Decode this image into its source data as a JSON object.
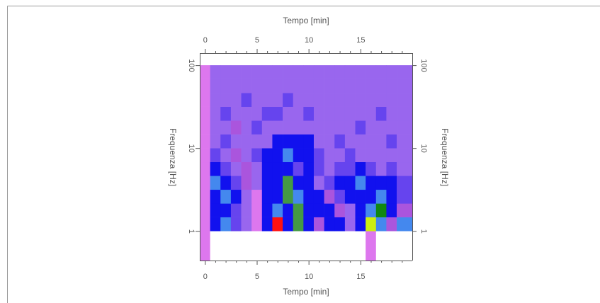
{
  "chart_data": {
    "type": "heatmap",
    "title_top": "Tempo [min]",
    "title_bottom": "Tempo [min]",
    "ylabel_left": "Frequenza [Hz]",
    "ylabel_right": "Frequenza [Hz]",
    "xlim": [
      -0.5,
      20
    ],
    "ylim": [
      0.44,
      140
    ],
    "log_y": true,
    "xticks": [
      0,
      5,
      10,
      15
    ],
    "xticks_minor": [
      1,
      2,
      3,
      4,
      6,
      7,
      8,
      9,
      11,
      12,
      13,
      14,
      16,
      17,
      18,
      19
    ],
    "yticks": [
      1,
      10,
      100
    ],
    "x_edges": [
      -0.5,
      0.5,
      1.5,
      2.5,
      3.5,
      4.5,
      5.5,
      6.5,
      7.5,
      8.5,
      9.5,
      10.5,
      11.5,
      12.5,
      13.5,
      14.5,
      15.5,
      16.5,
      17.5,
      18.5,
      20
    ],
    "y_edges": [
      0.44,
      1,
      1.47,
      2.15,
      3.16,
      4.64,
      6.81,
      10,
      14.7,
      21.5,
      31.6,
      46.4,
      68.1,
      100
    ],
    "cell_colors": [
      [
        "#dd77ee",
        "#ffffff",
        "#ffffff",
        "#ffffff",
        "#ffffff",
        "#ffffff",
        "#ffffff",
        "#ffffff",
        "#ffffff",
        "#ffffff",
        "#ffffff",
        "#ffffff",
        "#ffffff",
        "#ffffff",
        "#ffffff",
        "#ffffff",
        "#dd77ee",
        "#ffffff",
        "#ffffff",
        "#ffffff"
      ],
      [
        "#dd77ee",
        "#1111ee",
        "#4488ee",
        "#6644ee",
        "#9966ee",
        "#dd77ee",
        "#1111ee",
        "#ff1111",
        "#1111ee",
        "#449944",
        "#1111ee",
        "#aa55dd",
        "#1111ee",
        "#1111ee",
        "#9966ee",
        "#1111ee",
        "#ccee11",
        "#4488ee",
        "#aa55dd",
        "#4488ee"
      ],
      [
        "#dd77ee",
        "#1111ee",
        "#1111ee",
        "#6644ee",
        "#9966ee",
        "#dd77ee",
        "#1111ee",
        "#4488ee",
        "#1111ee",
        "#449944",
        "#1111ee",
        "#1111ee",
        "#1111ee",
        "#aa55dd",
        "#9966ee",
        "#1111ee",
        "#4488ee",
        "#118811",
        "#1111ee",
        "#aa55dd"
      ],
      [
        "#dd77ee",
        "#1111ee",
        "#4488ee",
        "#1111ee",
        "#9966ee",
        "#dd77ee",
        "#1111ee",
        "#1111ee",
        "#449944",
        "#4488ee",
        "#1111ee",
        "#1111ee",
        "#aa55dd",
        "#6644ee",
        "#1111ee",
        "#1111ee",
        "#1111ee",
        "#4488ee",
        "#1111ee",
        "#6644ee"
      ],
      [
        "#dd77ee",
        "#4488ee",
        "#1111ee",
        "#6644ee",
        "#aa55dd",
        "#9966ee",
        "#1111ee",
        "#1111ee",
        "#449944",
        "#1111ee",
        "#1111ee",
        "#9966ee",
        "#6644ee",
        "#1111ee",
        "#1111ee",
        "#4488ee",
        "#1111ee",
        "#1111ee",
        "#1111ee",
        "#6644ee"
      ],
      [
        "#dd77ee",
        "#1111ee",
        "#6644ee",
        "#9966ee",
        "#aa55dd",
        "#9966ee",
        "#1111ee",
        "#1111ee",
        "#1111ee",
        "#6644ee",
        "#1111ee",
        "#6644ee",
        "#9966ee",
        "#6644ee",
        "#6644ee",
        "#1111ee",
        "#6644ee",
        "#9966ee",
        "#6644ee",
        "#9966ee"
      ],
      [
        "#dd77ee",
        "#6644ee",
        "#9966ee",
        "#aa55dd",
        "#9966ee",
        "#6644ee",
        "#1111ee",
        "#1111ee",
        "#4488ee",
        "#1111ee",
        "#1111ee",
        "#6644ee",
        "#9966ee",
        "#9966ee",
        "#6644ee",
        "#9966ee",
        "#9966ee",
        "#9966ee",
        "#9966ee",
        "#9966ee"
      ],
      [
        "#dd77ee",
        "#9966ee",
        "#6644ee",
        "#9966ee",
        "#9966ee",
        "#9966ee",
        "#9966ee",
        "#1111ee",
        "#1111ee",
        "#1111ee",
        "#1111ee",
        "#9966ee",
        "#9966ee",
        "#6644ee",
        "#9966ee",
        "#9966ee",
        "#9966ee",
        "#9966ee",
        "#6644ee",
        "#9966ee"
      ],
      [
        "#dd77ee",
        "#9966ee",
        "#9966ee",
        "#aa55dd",
        "#9966ee",
        "#6644ee",
        "#9966ee",
        "#9966ee",
        "#9966ee",
        "#9966ee",
        "#9966ee",
        "#9966ee",
        "#9966ee",
        "#9966ee",
        "#9966ee",
        "#6644ee",
        "#9966ee",
        "#9966ee",
        "#9966ee",
        "#9966ee"
      ],
      [
        "#dd77ee",
        "#9966ee",
        "#6644ee",
        "#9966ee",
        "#9966ee",
        "#9966ee",
        "#6644ee",
        "#6644ee",
        "#9966ee",
        "#9966ee",
        "#6644ee",
        "#9966ee",
        "#9966ee",
        "#9966ee",
        "#9966ee",
        "#9966ee",
        "#9966ee",
        "#6644ee",
        "#9966ee",
        "#9966ee"
      ],
      [
        "#dd77ee",
        "#9966ee",
        "#9966ee",
        "#9966ee",
        "#6644ee",
        "#9966ee",
        "#9966ee",
        "#9966ee",
        "#6644ee",
        "#9966ee",
        "#9966ee",
        "#9966ee",
        "#9966ee",
        "#9966ee",
        "#9966ee",
        "#9966ee",
        "#9966ee",
        "#9966ee",
        "#9966ee",
        "#9966ee"
      ],
      [
        "#dd77ee",
        "#9966ee",
        "#9966ee",
        "#9966ee",
        "#9966ee",
        "#9966ee",
        "#9966ee",
        "#9966ee",
        "#9966ee",
        "#9966ee",
        "#9966ee",
        "#9966ee",
        "#9966ee",
        "#9966ee",
        "#9966ee",
        "#9966ee",
        "#9966ee",
        "#9966ee",
        "#9966ee",
        "#9966ee"
      ],
      [
        "#dd77ee",
        "#9966ee",
        "#9966ee",
        "#9966ee",
        "#9966ee",
        "#9966ee",
        "#9966ee",
        "#9966ee",
        "#9966ee",
        "#9966ee",
        "#9966ee",
        "#9966ee",
        "#9966ee",
        "#9966ee",
        "#9966ee",
        "#9966ee",
        "#9966ee",
        "#9966ee",
        "#9966ee",
        "#9966ee"
      ]
    ]
  }
}
